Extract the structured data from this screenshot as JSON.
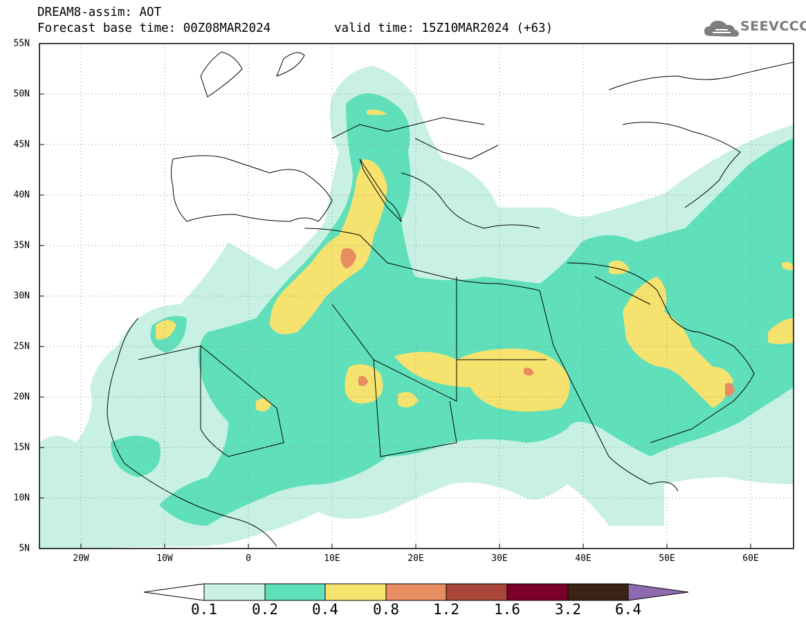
{
  "header": {
    "title": "DREAM8-assim: AOT",
    "base_time": "Forecast base time: 00Z08MAR2024",
    "valid_time": "valid time: 15Z10MAR2024 (+63)"
  },
  "logo": {
    "text": "SEEVCCC",
    "icon": "cloud-icon"
  },
  "map": {
    "lat_labels": [
      "55N",
      "50N",
      "45N",
      "40N",
      "35N",
      "30N",
      "25N",
      "20N",
      "15N",
      "10N",
      "5N"
    ],
    "lon_labels": [
      "20W",
      "10W",
      "0",
      "10E",
      "20E",
      "30E",
      "40E",
      "50E",
      "60E"
    ],
    "lat_range": [
      5,
      55
    ],
    "lon_range": [
      -25,
      65
    ],
    "grid": "dotted"
  },
  "colorbar": {
    "levels": [
      "0.1",
      "0.2",
      "0.4",
      "0.8",
      "1.2",
      "1.6",
      "3.2",
      "6.4"
    ],
    "colors": [
      "#ffffff",
      "#c8f1e4",
      "#5fe0ba",
      "#f6e26f",
      "#e88c62",
      "#a8463a",
      "#7a0027",
      "#3b2314",
      "#8e6bb0"
    ]
  }
}
